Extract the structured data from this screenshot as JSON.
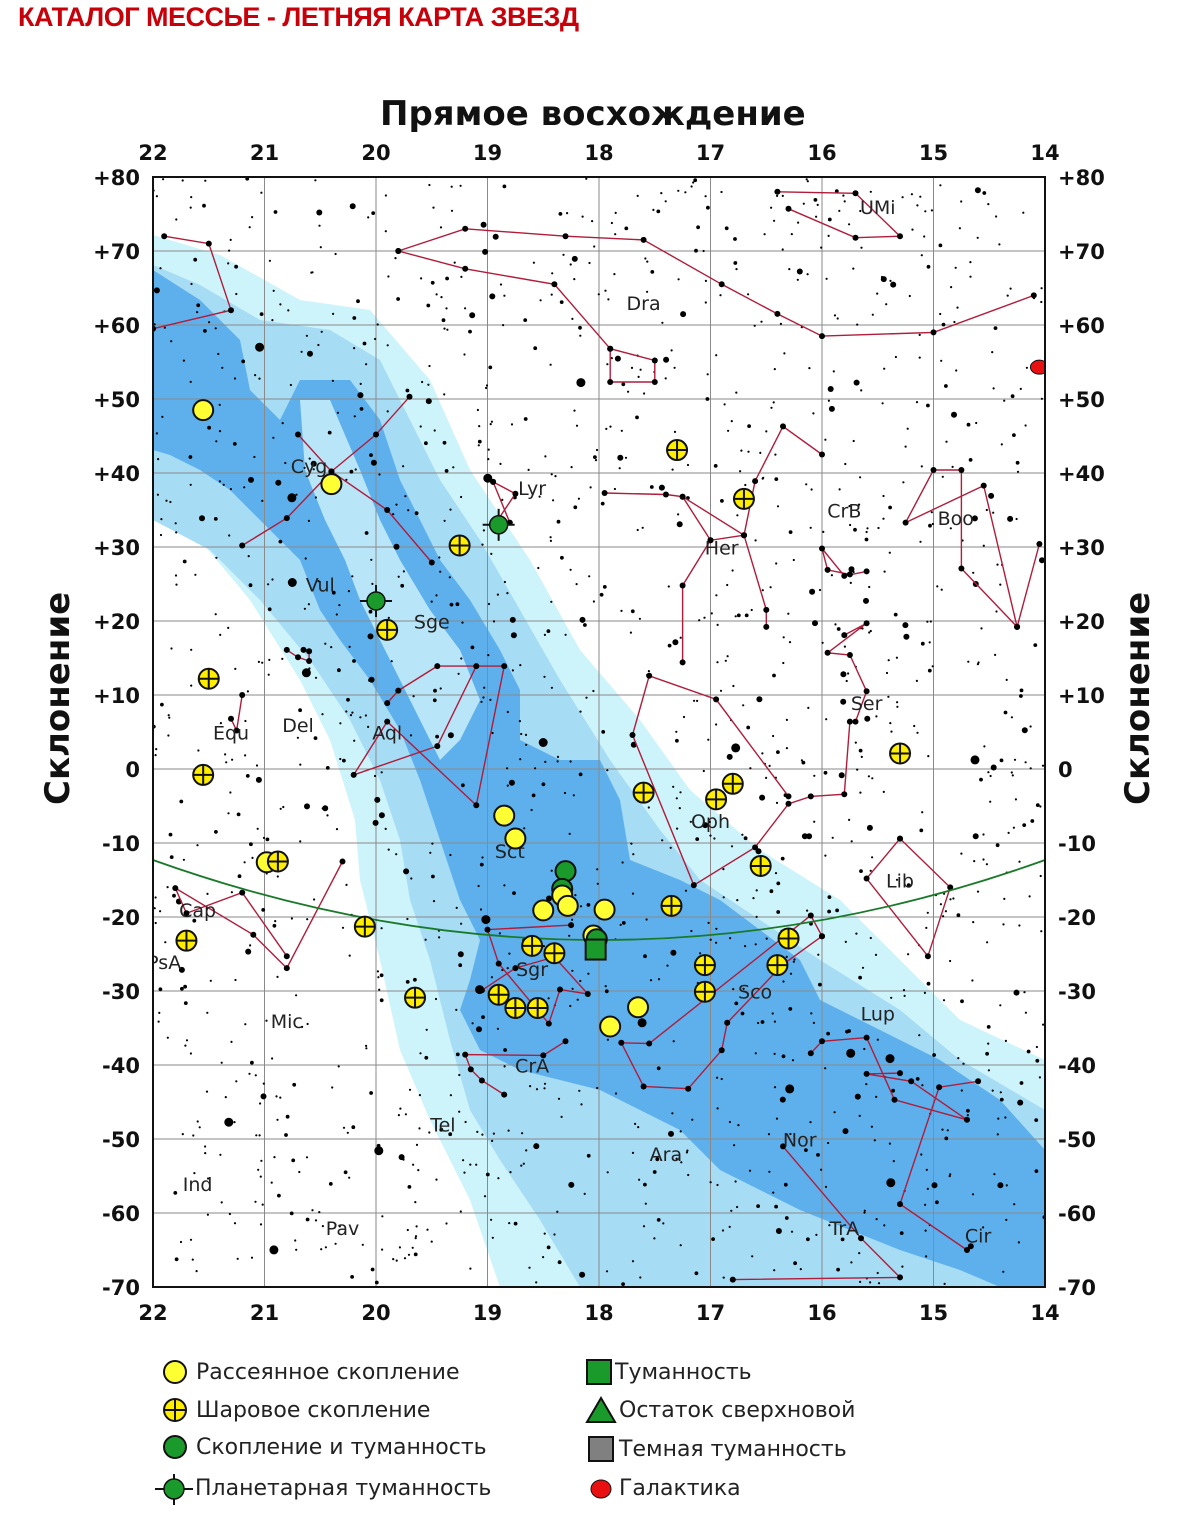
{
  "title": "КАТАЛОГ МЕССЬЕ - ЛЕТНЯЯ КАРТА ЗВЕЗД",
  "axes": {
    "x_title": "Прямое восхождение",
    "y_title_left": "Склонение",
    "y_title_right": "Склонение",
    "ra_ticks": [
      "22",
      "21",
      "20",
      "19",
      "18",
      "17",
      "16",
      "15",
      "14"
    ],
    "dec_ticks": [
      "+80",
      "+70",
      "+60",
      "+50",
      "+40",
      "+30",
      "+20",
      "+10",
      "0",
      "-10",
      "-20",
      "-30",
      "-40",
      "-50",
      "-60",
      "-70"
    ],
    "ra_range_hours": [
      22,
      14
    ],
    "dec_range_deg": [
      80,
      -70
    ],
    "grid": true
  },
  "constellations": [
    {
      "label": "UMi",
      "ra": 15.5,
      "dec": 75
    },
    {
      "label": "Dra",
      "ra": 17.6,
      "dec": 62
    },
    {
      "label": "Cyg",
      "ra": 20.6,
      "dec": 40
    },
    {
      "label": "Lyr",
      "ra": 18.6,
      "dec": 37
    },
    {
      "label": "CrB",
      "ra": 15.8,
      "dec": 34
    },
    {
      "label": "Boo",
      "ra": 14.8,
      "dec": 33
    },
    {
      "label": "Her",
      "ra": 16.9,
      "dec": 29
    },
    {
      "label": "Vul",
      "ra": 20.5,
      "dec": 24
    },
    {
      "label": "Sge",
      "ra": 19.5,
      "dec": 19
    },
    {
      "label": "Ser",
      "ra": 15.6,
      "dec": 8
    },
    {
      "label": "Equ",
      "ra": 21.3,
      "dec": 4
    },
    {
      "label": "Del",
      "ra": 20.7,
      "dec": 5
    },
    {
      "label": "Aql",
      "ra": 19.9,
      "dec": 4
    },
    {
      "label": "Oph",
      "ra": 17.0,
      "dec": -8
    },
    {
      "label": "Sct",
      "ra": 18.8,
      "dec": -12
    },
    {
      "label": "Lib",
      "ra": 15.3,
      "dec": -16
    },
    {
      "label": "Cap",
      "ra": 21.6,
      "dec": -20
    },
    {
      "label": "Sgr",
      "ra": 18.6,
      "dec": -28
    },
    {
      "label": "PsA",
      "ra": 21.9,
      "dec": -27
    },
    {
      "label": "Sco",
      "ra": 16.6,
      "dec": -31
    },
    {
      "label": "Lup",
      "ra": 15.5,
      "dec": -34
    },
    {
      "label": "Mic",
      "ra": 20.8,
      "dec": -35
    },
    {
      "label": "CrA",
      "ra": 18.6,
      "dec": -41
    },
    {
      "label": "Tel",
      "ra": 19.4,
      "dec": -49
    },
    {
      "label": "Nor",
      "ra": 16.2,
      "dec": -51
    },
    {
      "label": "Ara",
      "ra": 17.4,
      "dec": -53
    },
    {
      "label": "Ind",
      "ra": 21.6,
      "dec": -57
    },
    {
      "label": "Pav",
      "ra": 20.3,
      "dec": -63
    },
    {
      "label": "TrA",
      "ra": 15.8,
      "dec": -63
    },
    {
      "label": "Cir",
      "ra": 14.6,
      "dec": -64
    }
  ],
  "objects": [
    {
      "type": "open",
      "ra": 21.55,
      "dec": 48.5
    },
    {
      "type": "open",
      "ra": 20.4,
      "dec": 38.5
    },
    {
      "type": "globular",
      "ra": 17.3,
      "dec": 43.1
    },
    {
      "type": "globular",
      "ra": 16.7,
      "dec": 36.5
    },
    {
      "type": "globular",
      "ra": 19.25,
      "dec": 30.2
    },
    {
      "type": "planetary",
      "ra": 18.9,
      "dec": 33.0
    },
    {
      "type": "planetary",
      "ra": 20.0,
      "dec": 22.7
    },
    {
      "type": "globular",
      "ra": 19.9,
      "dec": 18.8
    },
    {
      "type": "globular",
      "ra": 21.5,
      "dec": 12.2
    },
    {
      "type": "globular",
      "ra": 21.55,
      "dec": -0.8
    },
    {
      "type": "globular",
      "ra": 15.3,
      "dec": 2.1
    },
    {
      "type": "globular",
      "ra": 16.8,
      "dec": -2.0
    },
    {
      "type": "globular",
      "ra": 16.95,
      "dec": -4.1
    },
    {
      "type": "globular",
      "ra": 17.6,
      "dec": -3.2
    },
    {
      "type": "globular",
      "ra": 16.55,
      "dec": -13.1
    },
    {
      "type": "open",
      "ra": 18.85,
      "dec": -6.3
    },
    {
      "type": "open",
      "ra": 18.75,
      "dec": -9.4
    },
    {
      "type": "open",
      "ra": 20.98,
      "dec": -12.6
    },
    {
      "type": "globular",
      "ra": 20.88,
      "dec": -12.5
    },
    {
      "type": "cluster_nebula",
      "ra": 18.3,
      "dec": -13.8
    },
    {
      "type": "cluster_nebula",
      "ra": 18.33,
      "dec": -16.2
    },
    {
      "type": "open",
      "ra": 18.33,
      "dec": -17.1
    },
    {
      "type": "open",
      "ra": 18.28,
      "dec": -18.5
    },
    {
      "type": "open",
      "ra": 18.5,
      "dec": -19.1
    },
    {
      "type": "open",
      "ra": 17.95,
      "dec": -19.0
    },
    {
      "type": "globular",
      "ra": 17.35,
      "dec": -18.5
    },
    {
      "type": "globular",
      "ra": 20.1,
      "dec": -21.3
    },
    {
      "type": "globular",
      "ra": 21.7,
      "dec": -23.2
    },
    {
      "type": "globular",
      "ra": 16.3,
      "dec": -22.9
    },
    {
      "type": "open",
      "ra": 18.05,
      "dec": -22.5
    },
    {
      "type": "cluster_nebula",
      "ra": 18.02,
      "dec": -23.0
    },
    {
      "type": "nebula",
      "ra": 18.03,
      "dec": -24.4
    },
    {
      "type": "globular",
      "ra": 18.6,
      "dec": -23.9
    },
    {
      "type": "globular",
      "ra": 18.4,
      "dec": -24.9
    },
    {
      "type": "globular",
      "ra": 17.05,
      "dec": -26.5
    },
    {
      "type": "globular",
      "ra": 16.4,
      "dec": -26.5
    },
    {
      "type": "globular",
      "ra": 17.05,
      "dec": -30.1
    },
    {
      "type": "globular",
      "ra": 19.65,
      "dec": -30.9
    },
    {
      "type": "globular",
      "ra": 18.9,
      "dec": -30.5
    },
    {
      "type": "globular",
      "ra": 18.75,
      "dec": -32.3
    },
    {
      "type": "globular",
      "ra": 18.55,
      "dec": -32.3
    },
    {
      "type": "open",
      "ra": 17.65,
      "dec": -32.2
    },
    {
      "type": "open",
      "ra": 17.9,
      "dec": -34.8
    },
    {
      "type": "galaxy",
      "ra": 14.05,
      "dec": 54.3
    }
  ],
  "ecliptic_label": "",
  "legend": [
    {
      "symbol": "open",
      "label": "Рассеянное скопление"
    },
    {
      "symbol": "globular",
      "label": "Шаровое скопление"
    },
    {
      "symbol": "cluster_nebula",
      "label": "Скопление и туманность"
    },
    {
      "symbol": "planetary",
      "label": "Планетарная туманность"
    },
    {
      "symbol": "nebula",
      "label": "Туманность"
    },
    {
      "symbol": "snr",
      "label": "Остаток сверхновой"
    },
    {
      "symbol": "dark_nebula",
      "label": "Темная туманность"
    },
    {
      "symbol": "galaxy",
      "label": "Галактика"
    }
  ],
  "colors": {
    "title": "#c8000a",
    "open_cluster": "#ffff33",
    "globular_cluster": "#ffee00",
    "green_object": "#1a9a2a",
    "galaxy": "#e81010",
    "milky_way_light": "#cdf3fb",
    "milky_way_mid": "#9fd9f3",
    "milky_way_dark": "#5aaeea",
    "constellation_lines": "#b01c3a",
    "ecliptic": "#1a7a2a",
    "grid": "#888888"
  }
}
